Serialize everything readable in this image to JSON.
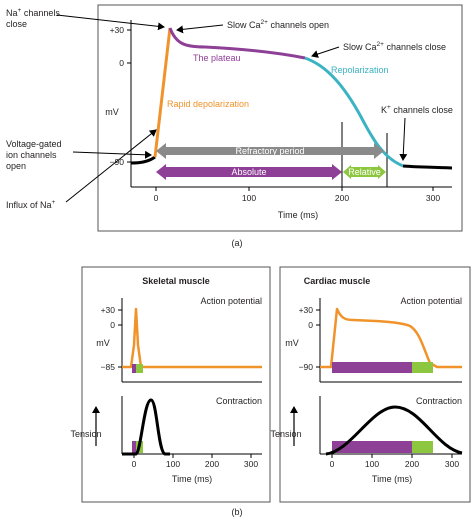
{
  "panel_a": {
    "annotations": {
      "na_close": [
        "Na",
        "+",
        " channels",
        "close"
      ],
      "slow_ca_open": [
        "Slow Ca",
        "2+",
        " channels open"
      ],
      "slow_ca_close": [
        "Slow Ca",
        "2+",
        " channels close"
      ],
      "plateau": "The plateau",
      "repolarization": "Repolarization",
      "rapid_depol": "Rapid depolarization",
      "k_close": [
        "K",
        "+",
        " channels close"
      ],
      "voltage_gated": [
        "Voltage-gated",
        "ion channels",
        "open"
      ],
      "influx": [
        "Influx of Na",
        "+"
      ]
    },
    "refractory_label": "Refractory period",
    "absolute_label": "Absolute",
    "relative_label": "Relative",
    "ylabel": "mV",
    "yticks": [
      "+30",
      "0",
      "−90"
    ],
    "xticks": [
      "0",
      "100",
      "200",
      "300"
    ],
    "xlabel": "Time (ms)",
    "caption": "(a)"
  },
  "panel_b": {
    "skeletal": {
      "title": "Skeletal muscle",
      "ap_label": "Action potential",
      "contraction_label": "Contraction",
      "ap_ylabel": "mV",
      "ap_yticks": [
        "+30",
        "0",
        "−85"
      ],
      "tension_label": "Tension",
      "xticks": [
        "0",
        "100",
        "200",
        "300"
      ],
      "xlabel": "Time (ms)"
    },
    "cardiac": {
      "title": "Cardiac muscle",
      "ap_label": "Action potential",
      "contraction_label": "Contraction",
      "ap_ylabel": "mV",
      "ap_yticks": [
        "+30",
        "0",
        "−90"
      ],
      "tension_label": "Tension",
      "xticks": [
        "0",
        "100",
        "200",
        "300"
      ],
      "xlabel": "Time (ms)"
    },
    "caption": "(b)"
  },
  "colors": {
    "orange": "#f0932b",
    "purple": "#8e3f96",
    "teal": "#3bb3c3",
    "green": "#8dc63f",
    "gray": "#8a8a8a",
    "black": "#000000"
  }
}
